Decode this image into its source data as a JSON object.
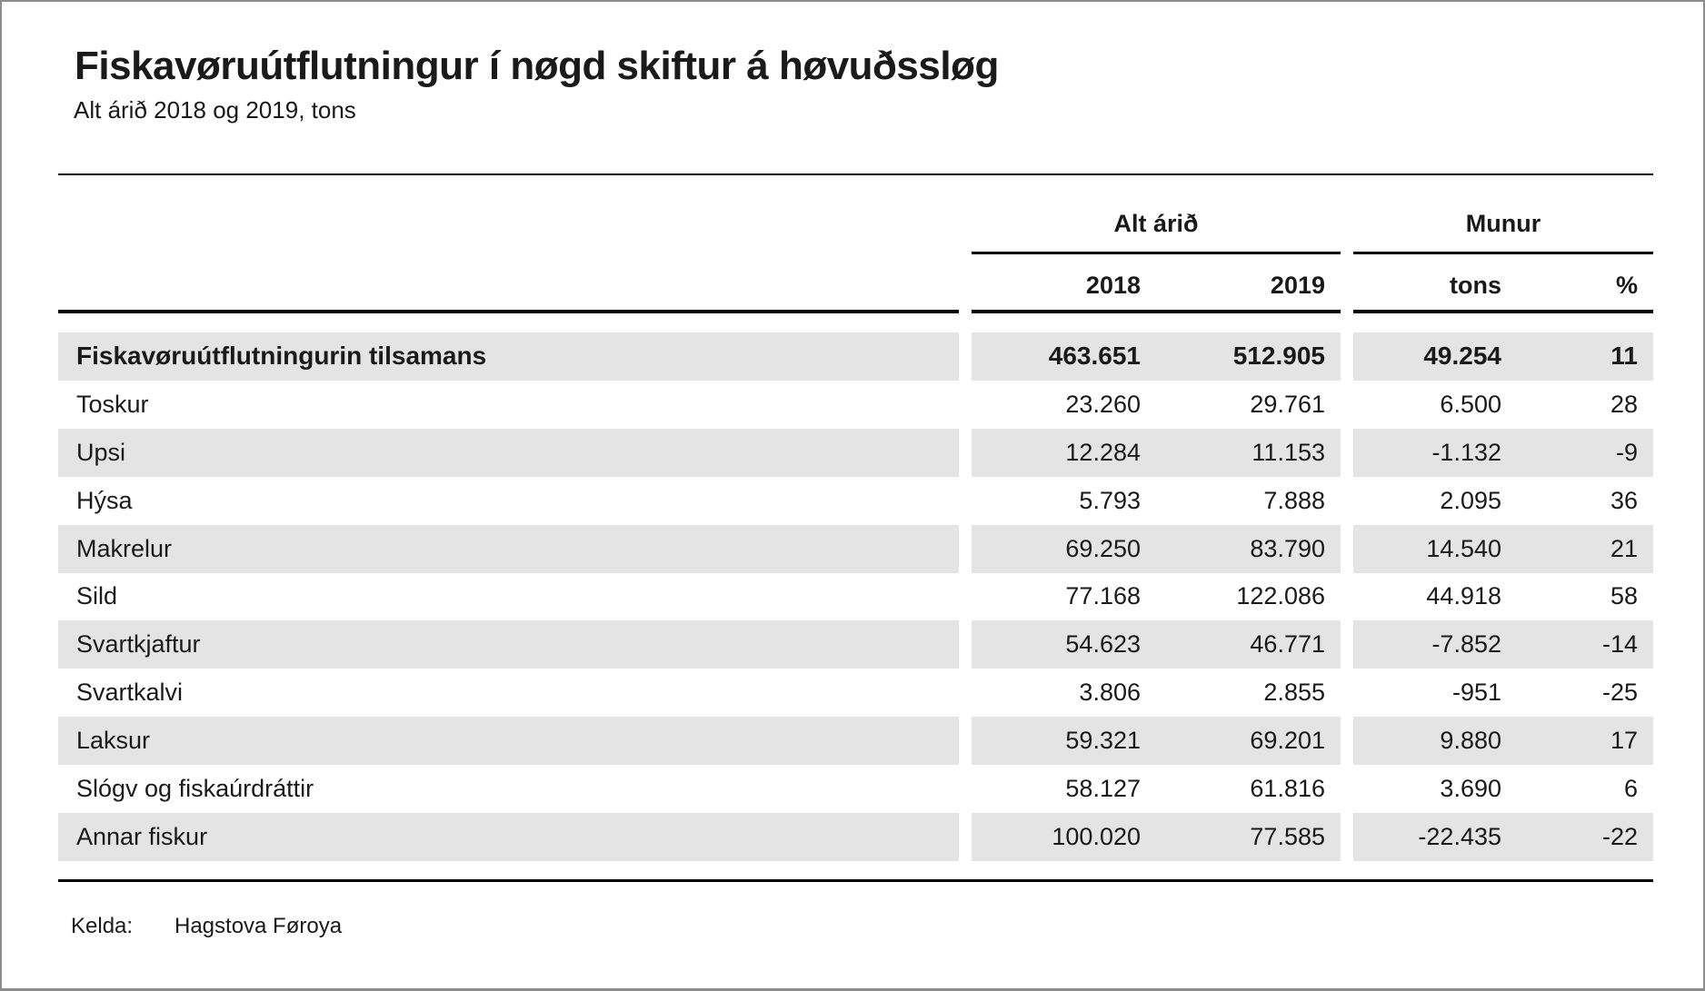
{
  "title": "Fiskavøruútflutningur í nøgd skiftur á høvuðssløg",
  "subtitle": "Alt árið 2018 og 2019, tons",
  "table": {
    "group_headers": [
      {
        "label": "Alt árið"
      },
      {
        "label": "Munur"
      }
    ],
    "column_headers": [
      "2018",
      "2019",
      "tons",
      "%"
    ],
    "rows": [
      {
        "label": "Fiskavøruútflutningurin tilsamans",
        "y2018": "463.651",
        "y2019": "512.905",
        "tons": "49.254",
        "pct": "11",
        "bold": true
      },
      {
        "label": "Toskur",
        "y2018": "23.260",
        "y2019": "29.761",
        "tons": "6.500",
        "pct": "28",
        "bold": false
      },
      {
        "label": "Upsi",
        "y2018": "12.284",
        "y2019": "11.153",
        "tons": "-1.132",
        "pct": "-9",
        "bold": false
      },
      {
        "label": "Hýsa",
        "y2018": "5.793",
        "y2019": "7.888",
        "tons": "2.095",
        "pct": "36",
        "bold": false
      },
      {
        "label": "Makrelur",
        "y2018": "69.250",
        "y2019": "83.790",
        "tons": "14.540",
        "pct": "21",
        "bold": false
      },
      {
        "label": "Sild",
        "y2018": "77.168",
        "y2019": "122.086",
        "tons": "44.918",
        "pct": "58",
        "bold": false
      },
      {
        "label": "Svartkjaftur",
        "y2018": "54.623",
        "y2019": "46.771",
        "tons": "-7.852",
        "pct": "-14",
        "bold": false
      },
      {
        "label": "Svartkalvi",
        "y2018": "3.806",
        "y2019": "2.855",
        "tons": "-951",
        "pct": "-25",
        "bold": false
      },
      {
        "label": "Laksur",
        "y2018": "59.321",
        "y2019": "69.201",
        "tons": "9.880",
        "pct": "17",
        "bold": false
      },
      {
        "label": "Slógv og fiskaúrdráttir",
        "y2018": "58.127",
        "y2019": "61.816",
        "tons": "3.690",
        "pct": "6",
        "bold": false
      },
      {
        "label": "Annar fiskur",
        "y2018": "100.020",
        "y2019": "77.585",
        "tons": "-22.435",
        "pct": "-22",
        "bold": false
      }
    ]
  },
  "footer": {
    "source_label": "Kelda:",
    "source_value": "Hagstova Føroya"
  },
  "colors": {
    "row_shade": "#e4e4e4",
    "text": "#1a1a1a",
    "rule": "#000000",
    "page_border": "#8c8c8c"
  },
  "chart_data": {
    "type": "table",
    "title": "Fiskavøruútflutningur í nøgd skiftur á høvuðssløg",
    "subtitle": "Alt árið 2018 og 2019, tons",
    "column_groups": [
      {
        "label": "Alt árið",
        "columns": [
          "2018",
          "2019"
        ]
      },
      {
        "label": "Munur",
        "columns": [
          "tons",
          "%"
        ]
      }
    ],
    "columns": [
      "2018",
      "2019",
      "Munur tons",
      "Munur %"
    ],
    "rows": [
      {
        "label": "Fiskavøruútflutningurin tilsamans",
        "2018": 463651,
        "2019": 512905,
        "munur_tons": 49254,
        "munur_pct": 11
      },
      {
        "label": "Toskur",
        "2018": 23260,
        "2019": 29761,
        "munur_tons": 6500,
        "munur_pct": 28
      },
      {
        "label": "Upsi",
        "2018": 12284,
        "2019": 11153,
        "munur_tons": -1132,
        "munur_pct": -9
      },
      {
        "label": "Hýsa",
        "2018": 5793,
        "2019": 7888,
        "munur_tons": 2095,
        "munur_pct": 36
      },
      {
        "label": "Makrelur",
        "2018": 69250,
        "2019": 83790,
        "munur_tons": 14540,
        "munur_pct": 21
      },
      {
        "label": "Sild",
        "2018": 77168,
        "2019": 122086,
        "munur_tons": 44918,
        "munur_pct": 58
      },
      {
        "label": "Svartkjaftur",
        "2018": 54623,
        "2019": 46771,
        "munur_tons": -7852,
        "munur_pct": -14
      },
      {
        "label": "Svartkalvi",
        "2018": 3806,
        "2019": 2855,
        "munur_tons": -951,
        "munur_pct": -25
      },
      {
        "label": "Laksur",
        "2018": 59321,
        "2019": 69201,
        "munur_tons": 9880,
        "munur_pct": 17
      },
      {
        "label": "Slógv og fiskaúrdráttir",
        "2018": 58127,
        "2019": 61816,
        "munur_tons": 3690,
        "munur_pct": 6
      },
      {
        "label": "Annar fiskur",
        "2018": 100020,
        "2019": 77585,
        "munur_tons": -22435,
        "munur_pct": -22
      }
    ],
    "source": "Hagstova Føroya"
  }
}
